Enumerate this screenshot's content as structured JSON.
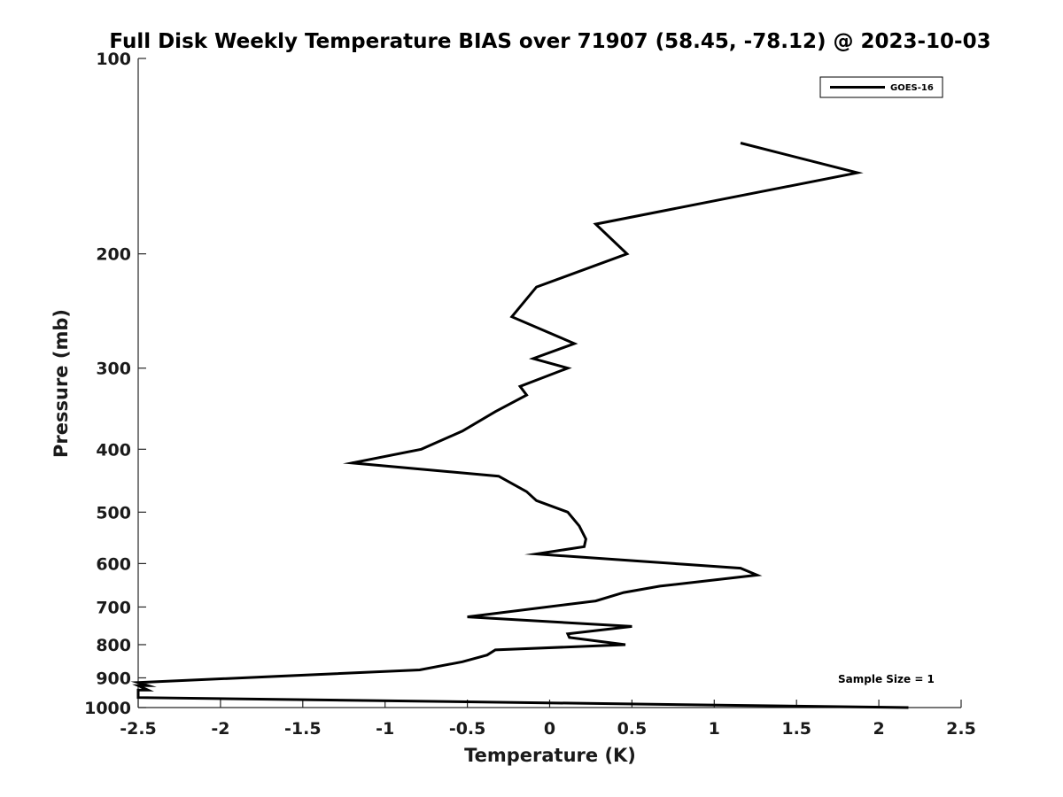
{
  "chart_data": {
    "type": "line",
    "title": "Full Disk Weekly Temperature BIAS over 71907 (58.45, -78.12) @ 2023-10-03",
    "xlabel": "Temperature (K)",
    "ylabel": "Pressure (mb)",
    "xlim": [
      -2.5,
      2.5
    ],
    "ylim": [
      100,
      1000
    ],
    "yscale": "log",
    "y_reversed": true,
    "x_ticks": [
      -2.5,
      -2,
      -1.5,
      -1,
      -0.5,
      0,
      0.5,
      1,
      1.5,
      2,
      2.5
    ],
    "x_tick_labels": [
      "-2.5",
      "-2",
      "-1.5",
      "-1",
      "-0.5",
      "0",
      "0.5",
      "1",
      "1.5",
      "2",
      "2.5"
    ],
    "y_ticks": [
      100,
      200,
      300,
      400,
      500,
      600,
      700,
      800,
      900,
      1000
    ],
    "y_tick_labels": [
      "100",
      "200",
      "300",
      "400",
      "500",
      "600",
      "700",
      "800",
      "900",
      "1000"
    ],
    "grid": false,
    "legend_position": "top-right",
    "annotation": "Sample Size = 1",
    "series": [
      {
        "name": "GOES-16",
        "color": "#000000",
        "points": [
          {
            "x": 1.16,
            "p": 135
          },
          {
            "x": 1.87,
            "p": 150
          },
          {
            "x": 0.28,
            "p": 180
          },
          {
            "x": 0.47,
            "p": 200
          },
          {
            "x": -0.08,
            "p": 225
          },
          {
            "x": -0.23,
            "p": 250
          },
          {
            "x": 0.15,
            "p": 275
          },
          {
            "x": -0.1,
            "p": 290
          },
          {
            "x": 0.11,
            "p": 300
          },
          {
            "x": -0.18,
            "p": 320
          },
          {
            "x": -0.14,
            "p": 330
          },
          {
            "x": -0.33,
            "p": 350
          },
          {
            "x": -0.53,
            "p": 375
          },
          {
            "x": -0.78,
            "p": 400
          },
          {
            "x": -1.2,
            "p": 420
          },
          {
            "x": -0.31,
            "p": 440
          },
          {
            "x": -0.14,
            "p": 465
          },
          {
            "x": -0.08,
            "p": 480
          },
          {
            "x": 0.11,
            "p": 500
          },
          {
            "x": 0.18,
            "p": 525
          },
          {
            "x": 0.22,
            "p": 550
          },
          {
            "x": 0.21,
            "p": 565
          },
          {
            "x": -0.08,
            "p": 580
          },
          {
            "x": 1.16,
            "p": 610
          },
          {
            "x": 1.26,
            "p": 625
          },
          {
            "x": 0.67,
            "p": 650
          },
          {
            "x": 0.45,
            "p": 665
          },
          {
            "x": 0.28,
            "p": 685
          },
          {
            "x": -0.5,
            "p": 725
          },
          {
            "x": 0.5,
            "p": 750
          },
          {
            "x": 0.11,
            "p": 770
          },
          {
            "x": 0.12,
            "p": 780
          },
          {
            "x": 0.46,
            "p": 800
          },
          {
            "x": -0.33,
            "p": 815
          },
          {
            "x": -0.38,
            "p": 830
          },
          {
            "x": -0.53,
            "p": 850
          },
          {
            "x": -0.79,
            "p": 875
          },
          {
            "x": -2.5,
            "p": 915
          },
          {
            "x": -2.44,
            "p": 925
          },
          {
            "x": -2.5,
            "p": 925
          },
          {
            "x": -2.44,
            "p": 940
          },
          {
            "x": -2.5,
            "p": 940
          },
          {
            "x": -2.5,
            "p": 965
          },
          {
            "x": 2.18,
            "p": 1000
          }
        ]
      }
    ]
  }
}
